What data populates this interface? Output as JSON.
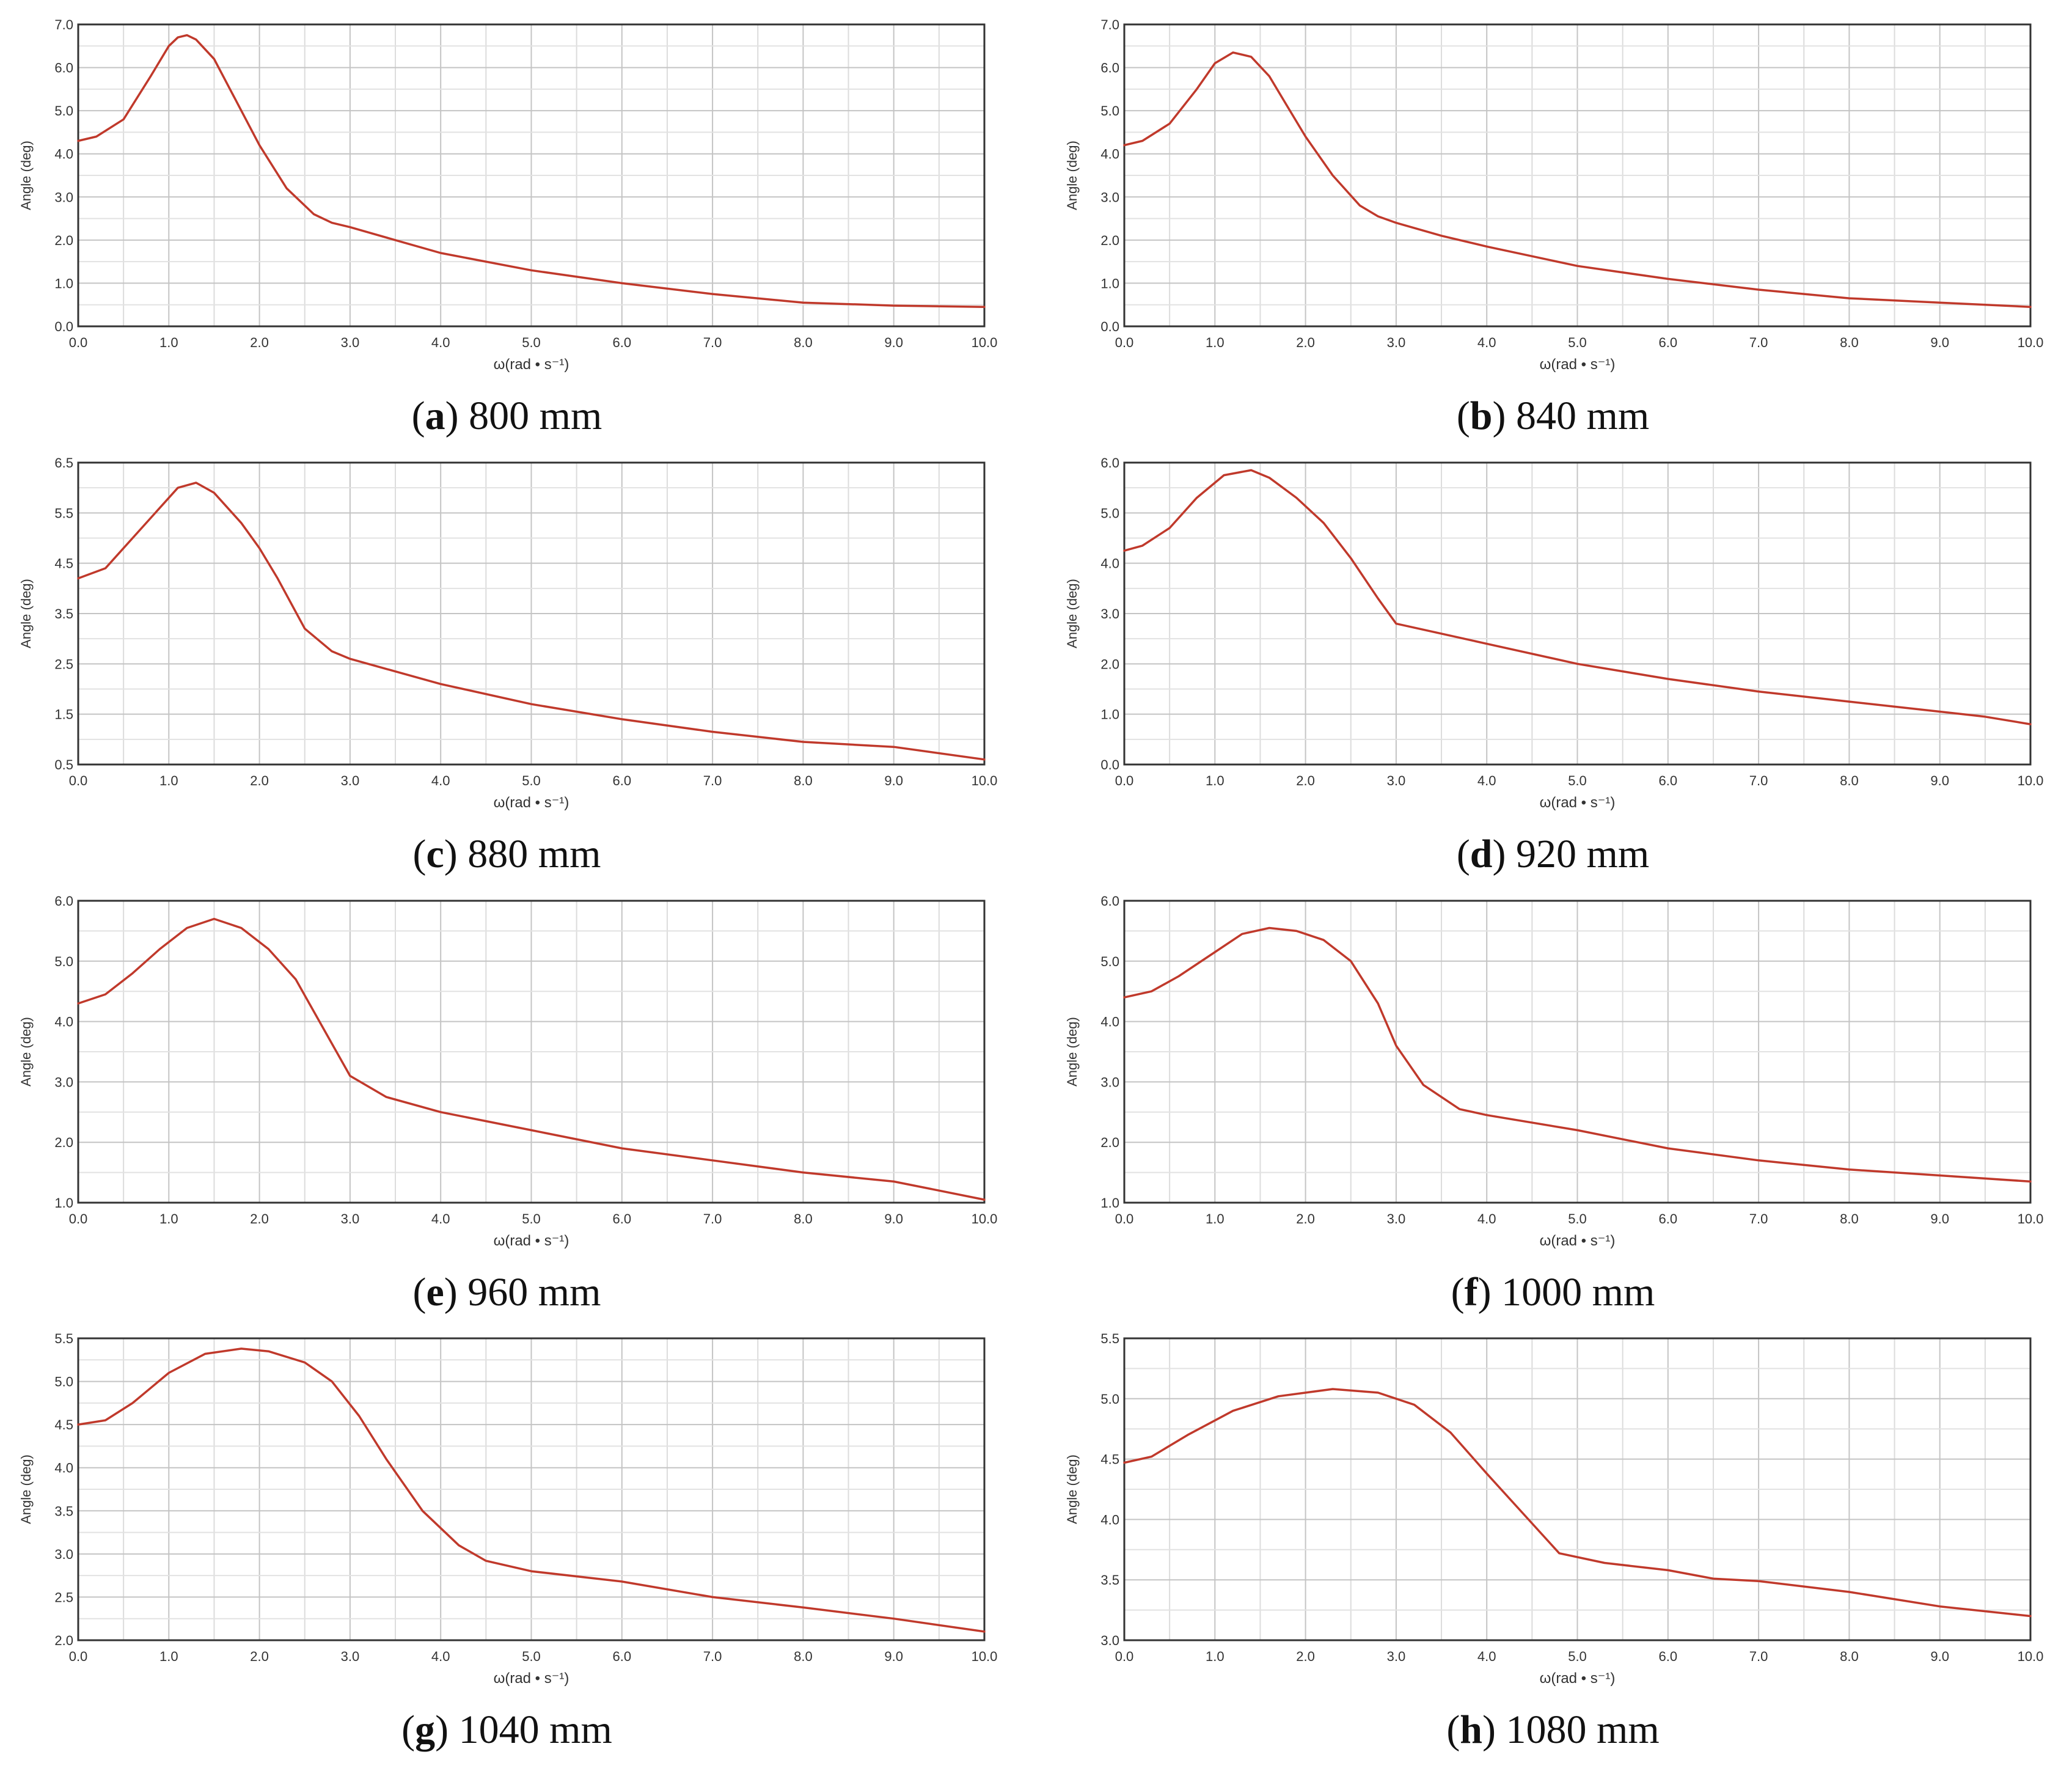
{
  "figure": {
    "ylabel": "Angle (deg)",
    "xlabel": "ω(rad • s⁻¹)",
    "line_color": "#c0392b"
  },
  "chart_data": [
    {
      "type": "line",
      "caption_letter": "a",
      "caption_text": " 800 mm",
      "xlim": [
        0,
        10
      ],
      "ylim": [
        0,
        7
      ],
      "xticks": [
        0,
        1,
        2,
        3,
        4,
        5,
        6,
        7,
        8,
        9,
        10
      ],
      "xtick_labels": [
        "0.0",
        "1.0",
        "2.0",
        "3.0",
        "4.0",
        "5.0",
        "6.0",
        "7.0",
        "8.0",
        "9.0",
        "10.0"
      ],
      "yticks": [
        0,
        1,
        2,
        3,
        4,
        5,
        6,
        7
      ],
      "ytick_labels": [
        "0.0",
        "1.0",
        "2.0",
        "3.0",
        "4.0",
        "5.0",
        "6.0",
        "7.0"
      ],
      "x": [
        0,
        0.2,
        0.5,
        0.8,
        1.0,
        1.1,
        1.2,
        1.3,
        1.5,
        1.8,
        2.0,
        2.3,
        2.6,
        2.8,
        3.0,
        3.5,
        4.0,
        5.0,
        6.0,
        7.0,
        8.0,
        9.0,
        10.0
      ],
      "y": [
        4.3,
        4.4,
        4.8,
        5.8,
        6.5,
        6.7,
        6.75,
        6.65,
        6.2,
        5.0,
        4.2,
        3.2,
        2.6,
        2.4,
        2.3,
        2.0,
        1.7,
        1.3,
        1.0,
        0.75,
        0.55,
        0.48,
        0.45
      ]
    },
    {
      "type": "line",
      "caption_letter": "b",
      "caption_text": " 840 mm",
      "xlim": [
        0,
        10
      ],
      "ylim": [
        0,
        7
      ],
      "xticks": [
        0,
        1,
        2,
        3,
        4,
        5,
        6,
        7,
        8,
        9,
        10
      ],
      "xtick_labels": [
        "0.0",
        "1.0",
        "2.0",
        "3.0",
        "4.0",
        "5.0",
        "6.0",
        "7.0",
        "8.0",
        "9.0",
        "10.0"
      ],
      "yticks": [
        0,
        1,
        2,
        3,
        4,
        5,
        6,
        7
      ],
      "ytick_labels": [
        "0.0",
        "1.0",
        "2.0",
        "3.0",
        "4.0",
        "5.0",
        "6.0",
        "7.0"
      ],
      "x": [
        0,
        0.2,
        0.5,
        0.8,
        1.0,
        1.2,
        1.4,
        1.6,
        1.8,
        2.0,
        2.3,
        2.6,
        2.8,
        3.0,
        3.5,
        4.0,
        5.0,
        6.0,
        7.0,
        8.0,
        9.0,
        10.0
      ],
      "y": [
        4.2,
        4.3,
        4.7,
        5.5,
        6.1,
        6.35,
        6.25,
        5.8,
        5.1,
        4.4,
        3.5,
        2.8,
        2.55,
        2.4,
        2.1,
        1.85,
        1.4,
        1.1,
        0.85,
        0.65,
        0.55,
        0.45
      ]
    },
    {
      "type": "line",
      "caption_letter": "c",
      "caption_text": " 880 mm",
      "xlim": [
        0,
        10
      ],
      "ylim": [
        0.5,
        6.5
      ],
      "xticks": [
        0,
        1,
        2,
        3,
        4,
        5,
        6,
        7,
        8,
        9,
        10
      ],
      "xtick_labels": [
        "0.0",
        "1.0",
        "2.0",
        "3.0",
        "4.0",
        "5.0",
        "6.0",
        "7.0",
        "8.0",
        "9.0",
        "10.0"
      ],
      "yticks": [
        0.5,
        1.5,
        2.5,
        3.5,
        4.5,
        5.5,
        6.5
      ],
      "ytick_labels": [
        "0.5",
        "1.5",
        "2.5",
        "3.5",
        "4.5",
        "5.5",
        "6.5"
      ],
      "x": [
        0,
        0.3,
        0.6,
        0.9,
        1.1,
        1.3,
        1.5,
        1.8,
        2.0,
        2.2,
        2.5,
        2.8,
        3.0,
        3.5,
        4.0,
        5.0,
        6.0,
        7.0,
        8.0,
        9.0,
        10.0
      ],
      "y": [
        4.2,
        4.4,
        5.0,
        5.6,
        6.0,
        6.1,
        5.9,
        5.3,
        4.8,
        4.2,
        3.2,
        2.75,
        2.6,
        2.35,
        2.1,
        1.7,
        1.4,
        1.15,
        0.95,
        0.85,
        0.6
      ]
    },
    {
      "type": "line",
      "caption_letter": "d",
      "caption_text": " 920 mm",
      "xlim": [
        0,
        10
      ],
      "ylim": [
        0,
        6
      ],
      "xticks": [
        0,
        1,
        2,
        3,
        4,
        5,
        6,
        7,
        8,
        9,
        10
      ],
      "xtick_labels": [
        "0.0",
        "1.0",
        "2.0",
        "3.0",
        "4.0",
        "5.0",
        "6.0",
        "7.0",
        "8.0",
        "9.0",
        "10.0"
      ],
      "yticks": [
        0,
        1,
        2,
        3,
        4,
        5,
        6
      ],
      "ytick_labels": [
        "0.0",
        "1.0",
        "2.0",
        "3.0",
        "4.0",
        "5.0",
        "6.0"
      ],
      "x": [
        0,
        0.2,
        0.5,
        0.8,
        1.1,
        1.4,
        1.6,
        1.9,
        2.2,
        2.5,
        2.8,
        3.0,
        3.5,
        4.0,
        5.0,
        6.0,
        7.0,
        8.0,
        9.0,
        9.5,
        10.0
      ],
      "y": [
        4.25,
        4.35,
        4.7,
        5.3,
        5.75,
        5.85,
        5.7,
        5.3,
        4.8,
        4.1,
        3.3,
        2.8,
        2.6,
        2.4,
        2.0,
        1.7,
        1.45,
        1.25,
        1.05,
        0.95,
        0.8
      ]
    },
    {
      "type": "line",
      "caption_letter": "e",
      "caption_text": " 960 mm",
      "xlim": [
        0,
        10
      ],
      "ylim": [
        1,
        6
      ],
      "xticks": [
        0,
        1,
        2,
        3,
        4,
        5,
        6,
        7,
        8,
        9,
        10
      ],
      "xtick_labels": [
        "0.0",
        "1.0",
        "2.0",
        "3.0",
        "4.0",
        "5.0",
        "6.0",
        "7.0",
        "8.0",
        "9.0",
        "10.0"
      ],
      "yticks": [
        1,
        2,
        3,
        4,
        5,
        6
      ],
      "ytick_labels": [
        "1.0",
        "2.0",
        "3.0",
        "4.0",
        "5.0",
        "6.0"
      ],
      "x": [
        0,
        0.3,
        0.6,
        0.9,
        1.2,
        1.5,
        1.8,
        2.1,
        2.4,
        2.7,
        3.0,
        3.4,
        4.0,
        5.0,
        6.0,
        7.0,
        8.0,
        9.0,
        9.5,
        10.0
      ],
      "y": [
        4.3,
        4.45,
        4.8,
        5.2,
        5.55,
        5.7,
        5.55,
        5.2,
        4.7,
        3.9,
        3.1,
        2.75,
        2.5,
        2.2,
        1.9,
        1.7,
        1.5,
        1.35,
        1.2,
        1.05
      ]
    },
    {
      "type": "line",
      "caption_letter": "f",
      "caption_text": " 1000 mm",
      "xlim": [
        0,
        10
      ],
      "ylim": [
        1,
        6
      ],
      "xticks": [
        0,
        1,
        2,
        3,
        4,
        5,
        6,
        7,
        8,
        9,
        10
      ],
      "xtick_labels": [
        "0.0",
        "1.0",
        "2.0",
        "3.0",
        "4.0",
        "5.0",
        "6.0",
        "7.0",
        "8.0",
        "9.0",
        "10.0"
      ],
      "yticks": [
        1,
        2,
        3,
        4,
        5,
        6
      ],
      "ytick_labels": [
        "1.0",
        "2.0",
        "3.0",
        "4.0",
        "5.0",
        "6.0"
      ],
      "x": [
        0,
        0.3,
        0.6,
        1.0,
        1.3,
        1.6,
        1.9,
        2.2,
        2.5,
        2.8,
        3.0,
        3.3,
        3.7,
        4.0,
        5.0,
        6.0,
        7.0,
        8.0,
        9.0,
        10.0
      ],
      "y": [
        4.4,
        4.5,
        4.75,
        5.15,
        5.45,
        5.55,
        5.5,
        5.35,
        5.0,
        4.3,
        3.6,
        2.95,
        2.55,
        2.45,
        2.2,
        1.9,
        1.7,
        1.55,
        1.45,
        1.35
      ]
    },
    {
      "type": "line",
      "caption_letter": "g",
      "caption_text": " 1040 mm",
      "xlim": [
        0,
        10
      ],
      "ylim": [
        2,
        5.5
      ],
      "xticks": [
        0,
        1,
        2,
        3,
        4,
        5,
        6,
        7,
        8,
        9,
        10
      ],
      "xtick_labels": [
        "0.0",
        "1.0",
        "2.0",
        "3.0",
        "4.0",
        "5.0",
        "6.0",
        "7.0",
        "8.0",
        "9.0",
        "10.0"
      ],
      "yticks": [
        2,
        2.5,
        3,
        3.5,
        4,
        4.5,
        5,
        5.5
      ],
      "ytick_labels": [
        "2.0",
        "2.5",
        "3.0",
        "3.5",
        "4.0",
        "4.5",
        "5.0",
        "5.5"
      ],
      "x": [
        0,
        0.3,
        0.6,
        1.0,
        1.4,
        1.8,
        2.1,
        2.5,
        2.8,
        3.1,
        3.4,
        3.8,
        4.2,
        4.5,
        5.0,
        6.0,
        7.0,
        8.0,
        9.0,
        10.0
      ],
      "y": [
        4.5,
        4.55,
        4.75,
        5.1,
        5.32,
        5.38,
        5.35,
        5.22,
        5.0,
        4.6,
        4.1,
        3.5,
        3.1,
        2.92,
        2.8,
        2.68,
        2.5,
        2.38,
        2.25,
        2.1
      ]
    },
    {
      "type": "line",
      "caption_letter": "h",
      "caption_text": " 1080 mm",
      "xlim": [
        0,
        10
      ],
      "ylim": [
        3,
        5.5
      ],
      "xticks": [
        0,
        1,
        2,
        3,
        4,
        5,
        6,
        7,
        8,
        9,
        10
      ],
      "xtick_labels": [
        "0.0",
        "1.0",
        "2.0",
        "3.0",
        "4.0",
        "5.0",
        "6.0",
        "7.0",
        "8.0",
        "9.0",
        "10.0"
      ],
      "yticks": [
        3,
        3.5,
        4,
        4.5,
        5,
        5.5
      ],
      "ytick_labels": [
        "3.0",
        "3.5",
        "4.0",
        "4.5",
        "5.0",
        "5.5"
      ],
      "x": [
        0,
        0.3,
        0.7,
        1.2,
        1.7,
        2.3,
        2.8,
        3.2,
        3.6,
        4.0,
        4.4,
        4.8,
        5.3,
        6.0,
        6.5,
        7.0,
        8.0,
        9.0,
        10.0
      ],
      "y": [
        4.47,
        4.52,
        4.7,
        4.9,
        5.02,
        5.08,
        5.05,
        4.95,
        4.72,
        4.38,
        4.05,
        3.72,
        3.64,
        3.58,
        3.51,
        3.49,
        3.4,
        3.28,
        3.2
      ]
    }
  ]
}
